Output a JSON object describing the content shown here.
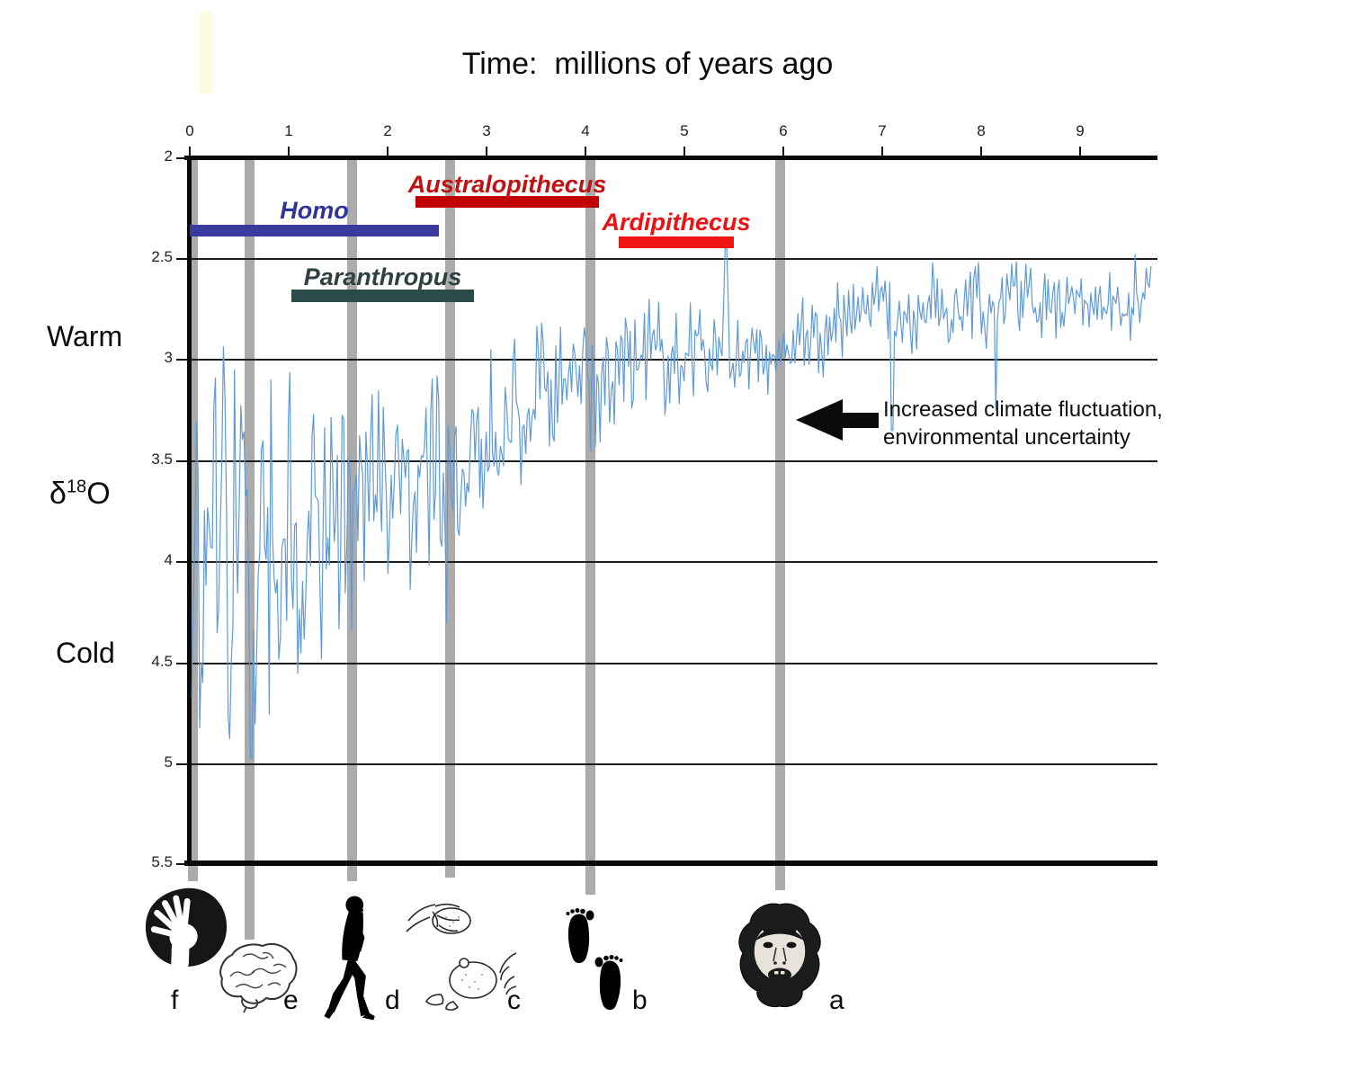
{
  "title": {
    "text": "Time:  millions of years ago"
  },
  "axes": {
    "x_ticks": [
      "0",
      "1",
      "2",
      "3",
      "4",
      "5",
      "6",
      "7",
      "8",
      "9"
    ],
    "y_ticks": [
      "2",
      "2.5",
      "3",
      "3.5",
      "4",
      "4.5",
      "5",
      "5.5"
    ]
  },
  "left_labels": {
    "warm": "Warm",
    "cold": "Cold",
    "delta": {
      "symbol": "δ",
      "sup": "18",
      "element": "O"
    }
  },
  "annotation": {
    "line1": "Increased climate fluctuation,",
    "line2": "environmental uncertainty"
  },
  "genus_bars": [
    {
      "label": "Homo",
      "bar_color": "#3a3a9e",
      "label_color": "#32329b",
      "start_ma": 0.0,
      "end_ma": 2.52
    },
    {
      "label": "Australopithecus",
      "bar_color": "#c00000",
      "label_color": "#c01212",
      "start_ma": 2.28,
      "end_ma": 4.14
    },
    {
      "label": "Paranthropus",
      "bar_color": "#2b4b4b",
      "label_color": "#2f4040",
      "start_ma": 1.03,
      "end_ma": 2.88
    },
    {
      "label": "Ardipithecus",
      "bar_color": "#f11414",
      "label_color": "#ee1111",
      "start_ma": 4.34,
      "end_ma": 5.5
    }
  ],
  "events": [
    {
      "letter": "f",
      "x_ma": 0.03,
      "icon": "handprint-icon"
    },
    {
      "letter": "e",
      "x_ma": 0.6,
      "icon": "brain-icon"
    },
    {
      "letter": "d",
      "x_ma": 1.64,
      "icon": "walking-hominin-icon"
    },
    {
      "letter": "c",
      "x_ma": 2.63,
      "icon": "stone-tool-use-icon"
    },
    {
      "letter": "b",
      "x_ma": 4.05,
      "icon": "footprints-icon"
    },
    {
      "letter": "a",
      "x_ma": 5.97,
      "icon": "ape-face-icon"
    }
  ],
  "chart_data": {
    "type": "line",
    "title": "Time:  millions of years ago",
    "xlabel": "Time: millions of years ago",
    "ylabel": "δ18O",
    "x_range": [
      0,
      9.77
    ],
    "y_range": [
      2,
      5.5
    ],
    "y_inverted": true,
    "y_qualitative": {
      "low_values": "Warm",
      "high_values": "Cold"
    },
    "x_ticks": [
      0,
      1,
      2,
      3,
      4,
      5,
      6,
      7,
      8,
      9
    ],
    "y_ticks": [
      2,
      2.5,
      3,
      3.5,
      4,
      4.5,
      5,
      5.5
    ],
    "grid": "horizontal",
    "legend": "none",
    "series": [
      {
        "name": "δ18O oxygen isotope record",
        "color": "#5e9ad9",
        "trend_bins": [
          {
            "x0": 0.0,
            "x1": 0.8,
            "mean": 3.95,
            "amp": 0.85
          },
          {
            "x0": 0.8,
            "x1": 1.6,
            "mean": 3.8,
            "amp": 0.6
          },
          {
            "x0": 1.6,
            "x1": 2.6,
            "mean": 3.68,
            "amp": 0.5
          },
          {
            "x0": 2.6,
            "x1": 3.1,
            "mean": 3.45,
            "amp": 0.42
          },
          {
            "x0": 3.1,
            "x1": 3.7,
            "mean": 3.18,
            "amp": 0.32
          },
          {
            "x0": 3.7,
            "x1": 4.6,
            "mean": 3.08,
            "amp": 0.28
          },
          {
            "x0": 4.6,
            "x1": 5.6,
            "mean": 2.95,
            "amp": 0.22
          },
          {
            "x0": 5.6,
            "x1": 6.2,
            "mean": 3.0,
            "amp": 0.18
          },
          {
            "x0": 6.2,
            "x1": 7.2,
            "mean": 2.78,
            "amp": 0.18
          },
          {
            "x0": 7.2,
            "x1": 8.3,
            "mean": 2.72,
            "amp": 0.18
          },
          {
            "x0": 8.3,
            "x1": 9.77,
            "mean": 2.74,
            "amp": 0.16
          }
        ],
        "spikes": [
          {
            "x": 0.1,
            "v": 4.82
          },
          {
            "x": 0.45,
            "v": 3.05
          },
          {
            "x": 0.62,
            "v": 4.97
          },
          {
            "x": 0.8,
            "v": 4.75
          },
          {
            "x": 1.12,
            "v": 4.45
          },
          {
            "x": 2.6,
            "v": 4.3
          },
          {
            "x": 3.05,
            "v": 2.95
          },
          {
            "x": 4.0,
            "v": 2.9
          },
          {
            "x": 5.42,
            "v": 2.45
          },
          {
            "x": 6.55,
            "v": 2.62
          },
          {
            "x": 7.1,
            "v": 3.35
          },
          {
            "x": 8.15,
            "v": 3.25
          },
          {
            "x": 9.55,
            "v": 2.48
          }
        ],
        "synthesis": {
          "seed": 20,
          "step_ma": 0.016
        }
      }
    ],
    "genus_ranges": [
      {
        "name": "Homo",
        "start_ma": 0.0,
        "end_ma": 2.52,
        "color": "#3a3a9e"
      },
      {
        "name": "Australopithecus",
        "start_ma": 2.28,
        "end_ma": 4.14,
        "color": "#c00000"
      },
      {
        "name": "Paranthropus",
        "start_ma": 1.03,
        "end_ma": 2.88,
        "color": "#2b4b4b"
      },
      {
        "name": "Ardipithecus",
        "start_ma": 4.34,
        "end_ma": 5.5,
        "color": "#f11414"
      }
    ],
    "event_markers_ma": {
      "f": 0.03,
      "e": 0.6,
      "d": 1.64,
      "c": 2.63,
      "b": 4.05,
      "a": 5.97
    },
    "annotation": "Increased climate fluctuation, environmental uncertainty",
    "colors": {
      "event_bar": "#ababab",
      "grid": "#1d1d1d",
      "axis": "#0a0a0a"
    }
  }
}
